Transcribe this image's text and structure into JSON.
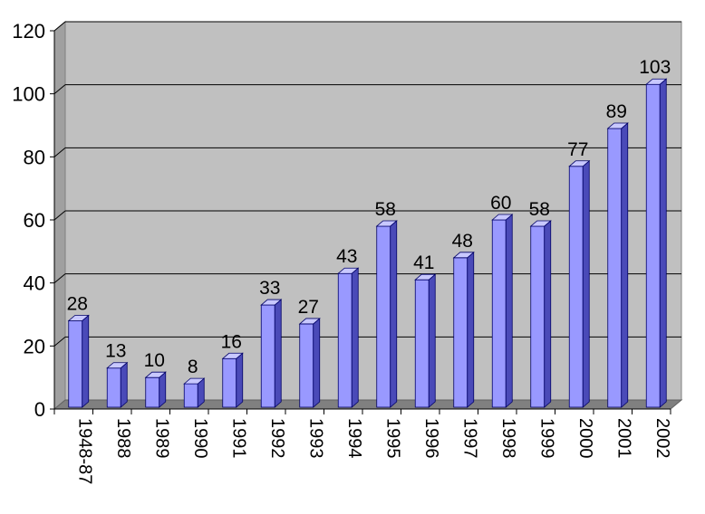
{
  "chart_data": {
    "type": "bar",
    "categories": [
      "1948-87",
      "1988",
      "1989",
      "1990",
      "1991",
      "1992",
      "1993",
      "1994",
      "1995",
      "1996",
      "1997",
      "1998",
      "1999",
      "2000",
      "2001",
      "2002"
    ],
    "values": [
      28,
      13,
      10,
      8,
      16,
      33,
      27,
      43,
      58,
      41,
      48,
      60,
      58,
      77,
      89,
      103
    ],
    "ylim": [
      0,
      120
    ],
    "yticks": [
      0,
      20,
      40,
      60,
      80,
      100,
      120
    ],
    "data_labels": true,
    "grid": true,
    "style": "3d-column",
    "colors": {
      "bar_front": "#9999ff",
      "bar_side": "#4a4ab8",
      "bar_top": "#c8c8ff",
      "bar_outline": "#000066",
      "back_wall": "#c0c0c0",
      "side_wall": "#a0a0a0",
      "floor": "#808080",
      "gridline": "#000000"
    }
  }
}
